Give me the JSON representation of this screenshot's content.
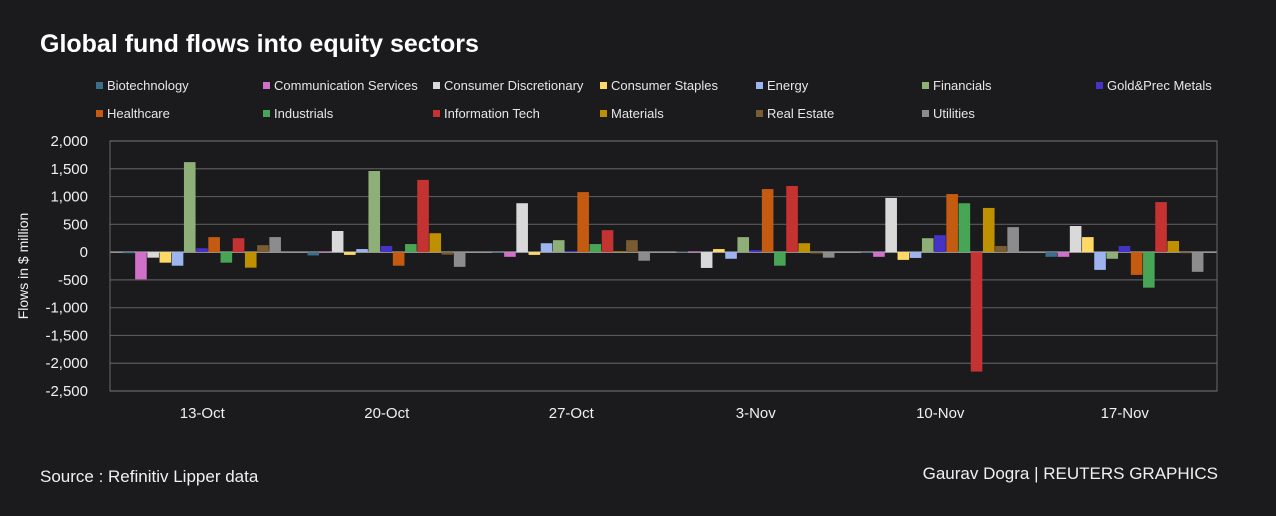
{
  "chart_data": {
    "type": "bar",
    "title": "Global fund flows into equity sectors",
    "ylabel": "Flows in $ million",
    "xlabel": "",
    "ylim": [
      -2500,
      2000
    ],
    "yticks": [
      2000,
      1500,
      1000,
      500,
      0,
      -500,
      -1000,
      -1500,
      -2000,
      -2500
    ],
    "ytick_labels": [
      "2,000",
      "1,500",
      "1,000",
      "500",
      "0",
      "-500",
      "-1,000",
      "-1,500",
      "-2,000",
      "-2,500"
    ],
    "grid": true,
    "legend": "top",
    "categories": [
      "13-Oct",
      "20-Oct",
      "27-Oct",
      "3-Nov",
      "10-Nov",
      "17-Nov"
    ],
    "series": [
      {
        "name": "Biotechnology",
        "color": "#3d6e8a",
        "values": [
          -20,
          -60,
          -5,
          10,
          -5,
          -85
        ]
      },
      {
        "name": "Communication Services",
        "color": "#d070c8",
        "values": [
          -490,
          15,
          -85,
          15,
          -85,
          -85
        ]
      },
      {
        "name": "Consumer Discretionary",
        "color": "#d9d9d9",
        "values": [
          -100,
          380,
          880,
          -285,
          975,
          470
        ]
      },
      {
        "name": "Consumer Staples",
        "color": "#ffd966",
        "values": [
          -190,
          -50,
          -50,
          55,
          -140,
          270
        ]
      },
      {
        "name": "Energy",
        "color": "#9db4ee",
        "values": [
          -245,
          55,
          160,
          -120,
          -105,
          -320
        ]
      },
      {
        "name": "Financials",
        "color": "#8faf78",
        "values": [
          1620,
          1460,
          215,
          270,
          250,
          -120
        ]
      },
      {
        "name": "Gold&Prec Metals",
        "color": "#4433c4",
        "values": [
          70,
          110,
          20,
          35,
          305,
          110
        ]
      },
      {
        "name": "Healthcare",
        "color": "#c55a11",
        "values": [
          270,
          -245,
          1080,
          1135,
          1045,
          -410
        ]
      },
      {
        "name": "Industrials",
        "color": "#47a555",
        "values": [
          -190,
          145,
          145,
          -245,
          880,
          -640
        ]
      },
      {
        "name": "Information Tech",
        "color": "#c53232",
        "values": [
          250,
          1300,
          395,
          1190,
          -2150,
          900
        ]
      },
      {
        "name": "Materials",
        "color": "#bf9000",
        "values": [
          -280,
          340,
          15,
          160,
          795,
          200
        ]
      },
      {
        "name": "Real Estate",
        "color": "#7a5c33",
        "values": [
          125,
          -45,
          215,
          -25,
          110,
          -20
        ]
      },
      {
        "name": "Utilities",
        "color": "#8c8c8c",
        "values": [
          270,
          -265,
          -155,
          -100,
          450,
          -355
        ]
      }
    ]
  },
  "footer": {
    "source": "Source : Refinitiv Lipper data",
    "credit": "Gaurav Dogra | REUTERS GRAPHICS"
  }
}
